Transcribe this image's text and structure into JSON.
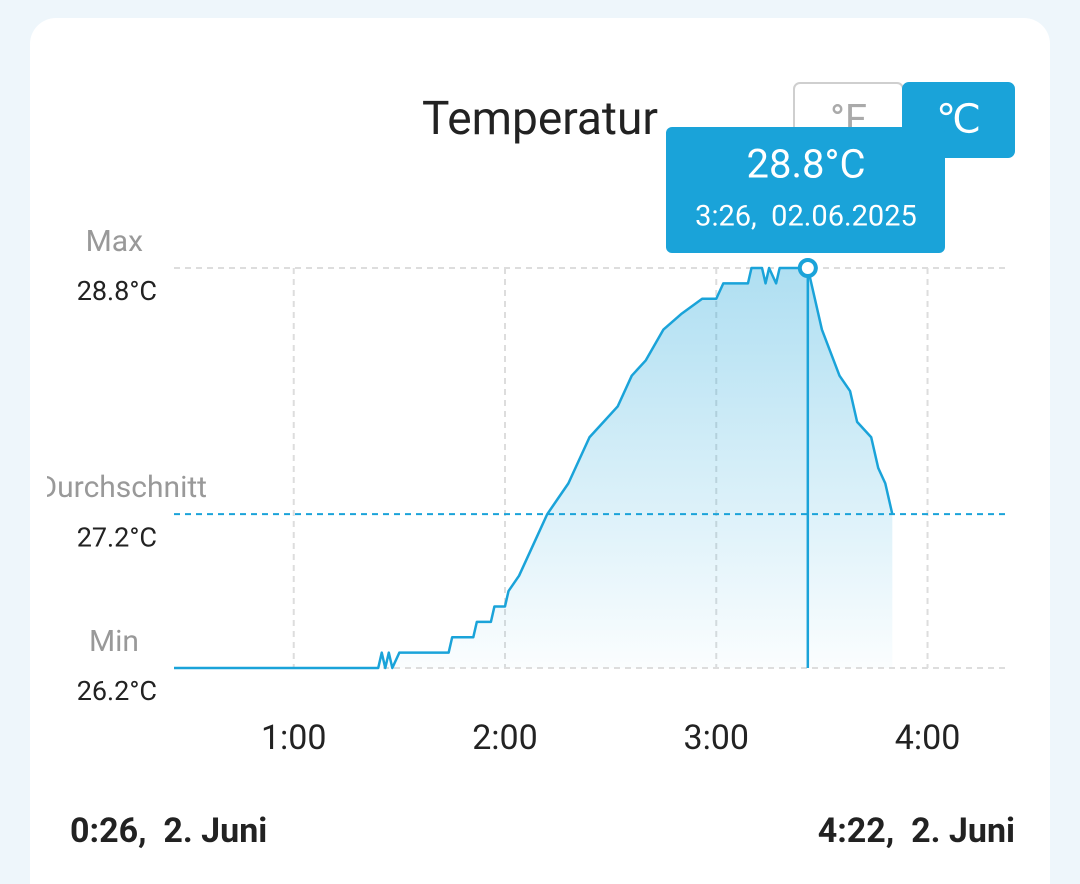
{
  "chart_data": {
    "type": "line",
    "title": "Temperatur",
    "unit_buttons": [
      "°F",
      "℃"
    ],
    "active_unit": 1,
    "x": [
      26,
      84,
      85,
      86,
      87,
      88,
      90,
      104,
      105,
      111,
      112,
      116,
      117,
      120,
      121,
      124,
      128,
      132,
      135,
      138,
      140,
      144,
      148,
      152,
      156,
      160,
      165,
      170,
      176,
      180,
      182,
      189,
      190,
      193,
      194,
      195,
      197,
      198,
      206,
      208,
      210,
      215,
      218,
      220,
      224,
      226,
      228,
      230
    ],
    "series": [
      {
        "color": "#1aa3d9",
        "values": [
          26.2,
          26.2,
          26.3,
          26.2,
          26.3,
          26.2,
          26.3,
          26.3,
          26.4,
          26.4,
          26.5,
          26.5,
          26.6,
          26.6,
          26.7,
          26.8,
          27.0,
          27.2,
          27.3,
          27.4,
          27.5,
          27.7,
          27.8,
          27.9,
          28.1,
          28.2,
          28.4,
          28.5,
          28.6,
          28.6,
          28.7,
          28.7,
          28.8,
          28.8,
          28.7,
          28.8,
          28.7,
          28.8,
          28.8,
          28.6,
          28.4,
          28.1,
          28.0,
          27.8,
          27.7,
          27.5,
          27.4,
          27.2
        ]
      }
    ],
    "xlim": [
      26,
      262
    ],
    "xticks": [
      {
        "value": 60,
        "label": "1:00"
      },
      {
        "value": 120,
        "label": "2:00"
      },
      {
        "value": 180,
        "label": "3:00"
      },
      {
        "value": 240,
        "label": "4:00"
      }
    ],
    "ylim": [
      26.2,
      28.8
    ],
    "yticks": [
      {
        "value": 26.2,
        "label": "26.2°C"
      },
      {
        "value": 27.2,
        "label": "27.2°C"
      },
      {
        "value": 28.8,
        "label": "28.8°C"
      }
    ],
    "ytick_names": [
      "Min",
      "Durchschnitt",
      "Max"
    ],
    "ytick_line_colors": [
      "#dddddd",
      "#1aa3d9",
      "#dddddd"
    ],
    "grid": true,
    "tooltip": {
      "x": 206,
      "value": 28.8,
      "value_label": "28.8°C",
      "label": "3:26,  02.06.2025"
    },
    "range_start_label": "0:26,  2. Juni",
    "range_end_label": "4:22,  2. Juni"
  }
}
